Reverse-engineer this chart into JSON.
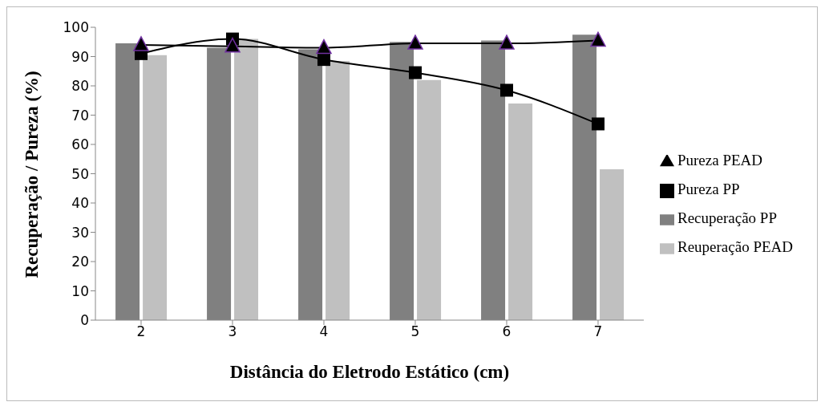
{
  "chart_data": {
    "type": "bar",
    "xlabel": "Distância do Eletrodo Estático (cm)",
    "ylabel": "Recuperação / Pureza (%)",
    "categories": [
      "2",
      "3",
      "4",
      "5",
      "6",
      "7"
    ],
    "series": [
      {
        "name": "Recuperação PP",
        "color": "#808080",
        "values": [
          94.5,
          93,
          92.5,
          95,
          95.5,
          97.5
        ]
      },
      {
        "name": "Reuperação PEAD",
        "color": "#c0c0c0",
        "values": [
          90.5,
          96,
          88.5,
          82,
          74,
          51.5
        ]
      },
      {
        "name": "Pureza PP",
        "type": "line",
        "color": "#000000",
        "marker": "square",
        "values": [
          91,
          96,
          89,
          84.5,
          78.5,
          67
        ]
      },
      {
        "name": "Pureza PEAD",
        "type": "line",
        "color": "#000000",
        "marker": "triangle",
        "values": [
          94,
          93.5,
          93,
          94.5,
          94.5,
          95.5
        ]
      }
    ],
    "ylim": [
      0,
      100
    ],
    "yticks": [
      0,
      10,
      20,
      30,
      40,
      50,
      60,
      70,
      80,
      90,
      100
    ],
    "grid": false,
    "legend": "right",
    "line_style": "solid"
  }
}
